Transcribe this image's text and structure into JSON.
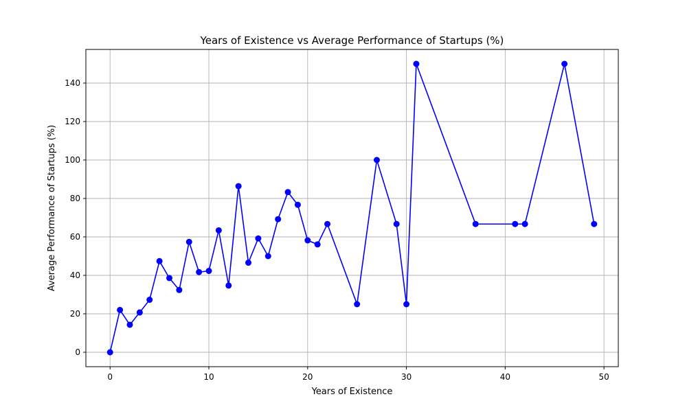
{
  "chart_data": {
    "type": "line",
    "title": "Years of Existence vs Average Performance of Startups (%)",
    "xlabel": "Years of Existence",
    "ylabel": "Average Performance of Startups (%)",
    "xlim": [
      -2.45,
      51.45
    ],
    "ylim": [
      -7.5,
      157.5
    ],
    "xticks": [
      0,
      10,
      20,
      30,
      40,
      50
    ],
    "yticks": [
      0,
      20,
      40,
      60,
      80,
      100,
      120,
      140
    ],
    "grid": true,
    "series": [
      {
        "color": "#0000ff",
        "marker": "circle",
        "x": [
          0,
          1,
          2,
          3,
          4,
          5,
          6,
          7,
          8,
          9,
          10,
          11,
          12,
          13,
          14,
          15,
          16,
          17,
          18,
          19,
          20,
          21,
          22,
          25,
          27,
          29,
          30,
          31,
          37,
          41,
          42,
          46,
          49
        ],
        "y": [
          0,
          22,
          14.3,
          20.7,
          27.3,
          47.4,
          38.6,
          32.4,
          57.4,
          41.7,
          42.3,
          63.4,
          34.7,
          86.4,
          46.6,
          59.2,
          50,
          69.2,
          83.3,
          76.7,
          58.2,
          56.1,
          66.7,
          25,
          100,
          66.7,
          25,
          150,
          66.7,
          66.7,
          66.7,
          150,
          66.7
        ]
      }
    ]
  }
}
